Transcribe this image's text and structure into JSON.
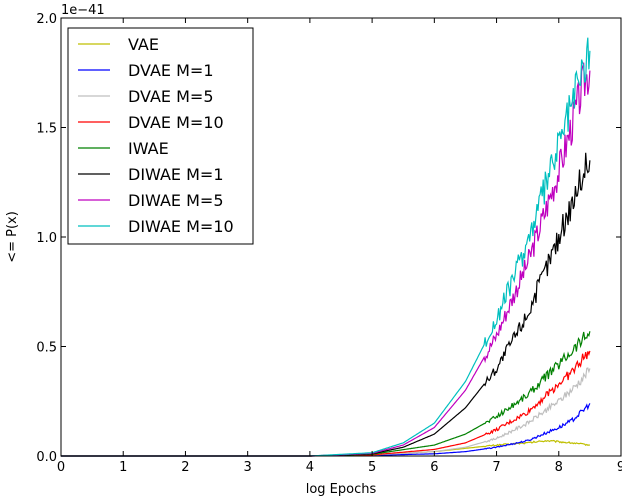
{
  "chart_data": {
    "type": "line",
    "xlabel": "log Epochs",
    "ylabel": "<= P(x)",
    "y_offset_label": "1e−41",
    "xlim": [
      0,
      9
    ],
    "ylim": [
      0,
      2.0
    ],
    "x_ticks": [
      "0",
      "1",
      "2",
      "3",
      "4",
      "5",
      "6",
      "7",
      "8",
      "9"
    ],
    "y_ticks": [
      "0.0",
      "0.5",
      "1.0",
      "1.5",
      "2.0"
    ],
    "grid": false,
    "legend_position": "top-left",
    "series": [
      {
        "name": "VAE",
        "color": "#bfbf00",
        "x": [
          0,
          4,
          5,
          6,
          6.5,
          7,
          7.5,
          7.8,
          8.0,
          8.2,
          8.5
        ],
        "y": [
          0,
          0,
          0.005,
          0.02,
          0.035,
          0.05,
          0.06,
          0.07,
          0.065,
          0.06,
          0.05
        ]
      },
      {
        "name": "DVAE M=1",
        "color": "#0000ff",
        "x": [
          0,
          4,
          5,
          6,
          6.5,
          7,
          7.5,
          8.0,
          8.2,
          8.4,
          8.5
        ],
        "y": [
          0,
          0,
          0.003,
          0.01,
          0.02,
          0.04,
          0.07,
          0.13,
          0.16,
          0.21,
          0.24
        ]
      },
      {
        "name": "DVAE M=5",
        "color": "#bfbfbf",
        "x": [
          0,
          4,
          5,
          6,
          6.5,
          7,
          7.5,
          8.0,
          8.2,
          8.4,
          8.5
        ],
        "y": [
          0,
          0,
          0.005,
          0.02,
          0.04,
          0.08,
          0.15,
          0.25,
          0.3,
          0.36,
          0.4
        ]
      },
      {
        "name": "DVAE M=10",
        "color": "#ff0000",
        "x": [
          0,
          4,
          5,
          6,
          6.5,
          7,
          7.5,
          8.0,
          8.2,
          8.4,
          8.5
        ],
        "y": [
          0,
          0,
          0.005,
          0.03,
          0.06,
          0.12,
          0.2,
          0.33,
          0.38,
          0.45,
          0.48
        ]
      },
      {
        "name": "IWAE",
        "color": "#008000",
        "x": [
          0,
          4,
          5,
          6,
          6.5,
          7,
          7.5,
          8.0,
          8.2,
          8.4,
          8.5
        ],
        "y": [
          0,
          0,
          0.008,
          0.05,
          0.1,
          0.18,
          0.28,
          0.42,
          0.48,
          0.54,
          0.57
        ]
      },
      {
        "name": "DIWAE M=1",
        "color": "#000000",
        "x": [
          0,
          4,
          5,
          5.5,
          6,
          6.5,
          7,
          7.5,
          8.0,
          8.2,
          8.4,
          8.5
        ],
        "y": [
          0,
          0,
          0.01,
          0.04,
          0.1,
          0.22,
          0.4,
          0.65,
          1.0,
          1.15,
          1.3,
          1.35
        ]
      },
      {
        "name": "DIWAE M=5",
        "color": "#bf00bf",
        "x": [
          0,
          4,
          5,
          5.5,
          6,
          6.5,
          7,
          7.5,
          8.0,
          8.2,
          8.4,
          8.5
        ],
        "y": [
          0,
          0,
          0.012,
          0.05,
          0.13,
          0.3,
          0.55,
          0.88,
          1.3,
          1.5,
          1.7,
          1.76
        ]
      },
      {
        "name": "DIWAE M=10",
        "color": "#00bfbf",
        "x": [
          0,
          4,
          5,
          5.5,
          6,
          6.5,
          7,
          7.5,
          8.0,
          8.2,
          8.4,
          8.5
        ],
        "y": [
          0,
          0,
          0.015,
          0.06,
          0.15,
          0.34,
          0.62,
          0.98,
          1.42,
          1.6,
          1.78,
          1.85
        ]
      }
    ]
  }
}
